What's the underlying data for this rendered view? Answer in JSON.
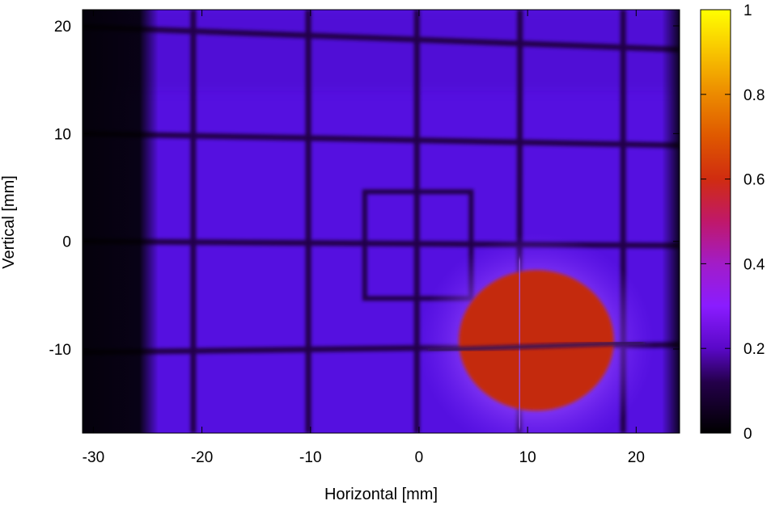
{
  "chart_data": {
    "type": "heatmap",
    "title": "",
    "xlabel": "Horizontal [mm]",
    "ylabel": "Vertical [mm]",
    "xlim": [
      -31,
      24
    ],
    "ylim": [
      -17.8,
      21.5
    ],
    "xticks": [
      -30,
      -20,
      -10,
      0,
      10,
      20
    ],
    "yticks": [
      -10,
      0,
      10,
      20
    ],
    "colorbar": {
      "range": [
        0,
        1
      ],
      "ticks": [
        0,
        0.2,
        0.4,
        0.6,
        0.8,
        1
      ],
      "palette": [
        "#000000",
        "#3a0080",
        "#8a1cff",
        "#b020b8",
        "#d02010",
        "#e86000",
        "#ffd000",
        "#ffff00"
      ]
    },
    "background_level": 0.18,
    "dark_band": {
      "x_from": -31,
      "x_to": -24,
      "level": 0.02
    },
    "grid_wires": {
      "x": [
        -20.8,
        -10.2,
        -0.2,
        9.3,
        18.8
      ],
      "y": [
        {
          "x0": -31,
          "y0": 19.9,
          "x1": 24,
          "y1": 17.8
        },
        {
          "x0": -31,
          "y0": 10.0,
          "x1": 24,
          "y1": 8.9
        },
        {
          "x0": -31,
          "y0": 0.0,
          "x1": 24,
          "y1": -0.4
        },
        {
          "x0": -31,
          "y0": -10.3,
          "x1": 24,
          "y1": -9.6
        }
      ],
      "level": 0.04
    },
    "square_marker": {
      "x0": -5,
      "y0": -5.3,
      "x1": 4.8,
      "y1": 4.6,
      "level": 0.04
    },
    "hot_spot": {
      "center": [
        10.8,
        -9.5
      ],
      "radius_x": 7,
      "radius_y": 6.4,
      "level": 0.58,
      "halo_level": 0.3
    }
  }
}
